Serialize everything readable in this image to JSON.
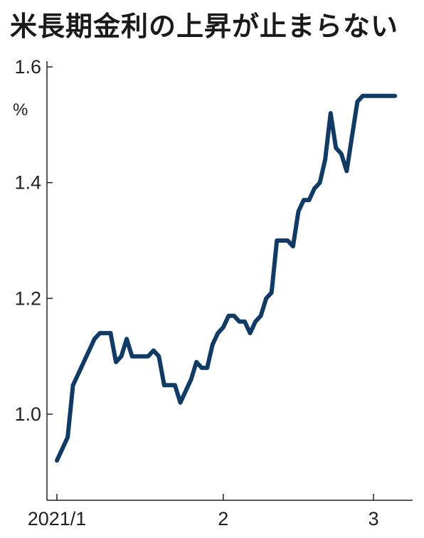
{
  "title": "米長期金利の上昇が止まらない",
  "chart_data": {
    "type": "line",
    "title": "米長期金利の上昇が止まらない",
    "ylabel": "%",
    "xlabel": "",
    "ylim": [
      0.88,
      1.62
    ],
    "yticks": [
      1.0,
      1.2,
      1.4,
      1.6
    ],
    "ytick_labels": [
      "1.0",
      "1.2",
      "1.4",
      "1.6"
    ],
    "xticks": [
      {
        "x": 0,
        "label": "2021/1"
      },
      {
        "x": 31,
        "label": "2"
      },
      {
        "x": 59,
        "label": "3"
      }
    ],
    "grid": false,
    "legend": "none",
    "color": "#0f3b66",
    "series": [
      {
        "x": [
          0,
          2,
          3,
          4,
          5,
          6,
          7,
          8,
          9,
          10,
          11,
          12,
          13,
          14,
          15,
          16,
          17,
          18,
          19,
          20,
          21,
          22,
          23,
          24,
          25,
          26,
          27,
          28,
          29,
          30,
          31,
          32,
          33,
          34,
          35,
          36,
          37,
          38,
          39,
          40,
          41,
          42,
          43,
          44,
          45,
          46,
          47,
          48,
          49,
          50,
          51,
          52,
          53,
          54,
          55,
          56,
          57,
          58,
          59,
          60,
          61,
          62,
          63
        ],
        "values": [
          0.92,
          0.96,
          1.05,
          1.07,
          1.09,
          1.11,
          1.13,
          1.14,
          1.14,
          1.14,
          1.09,
          1.1,
          1.13,
          1.1,
          1.1,
          1.1,
          1.1,
          1.11,
          1.1,
          1.05,
          1.05,
          1.05,
          1.02,
          1.04,
          1.06,
          1.09,
          1.08,
          1.08,
          1.12,
          1.14,
          1.15,
          1.17,
          1.17,
          1.16,
          1.16,
          1.14,
          1.16,
          1.17,
          1.2,
          1.21,
          1.3,
          1.3,
          1.3,
          1.29,
          1.35,
          1.37,
          1.37,
          1.39,
          1.4,
          1.44,
          1.52,
          1.46,
          1.45,
          1.42,
          1.48,
          1.54,
          1.55,
          1.55,
          1.55,
          1.55,
          1.55,
          1.55,
          1.55
        ]
      }
    ]
  }
}
